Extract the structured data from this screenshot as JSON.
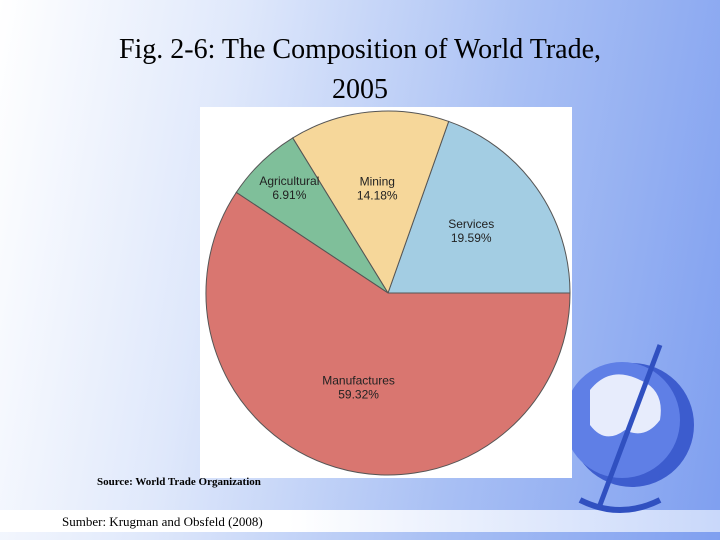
{
  "chart_data": {
    "type": "pie",
    "title": "Fig. 2-6: The Composition of World Trade, 2005",
    "categories": [
      "Services",
      "Mining",
      "Agricultural",
      "Manufactures"
    ],
    "values": [
      19.59,
      14.18,
      6.91,
      59.32
    ],
    "value_labels": [
      "19.59%",
      "14.18%",
      "6.91%",
      "59.32%"
    ],
    "colors": [
      "#a3cde3",
      "#f6d79a",
      "#7fbf9a",
      "#d97670"
    ],
    "source": "Source: World Trade Organization"
  },
  "footer": "Sumber: Krugman and Obsfeld (2008)"
}
